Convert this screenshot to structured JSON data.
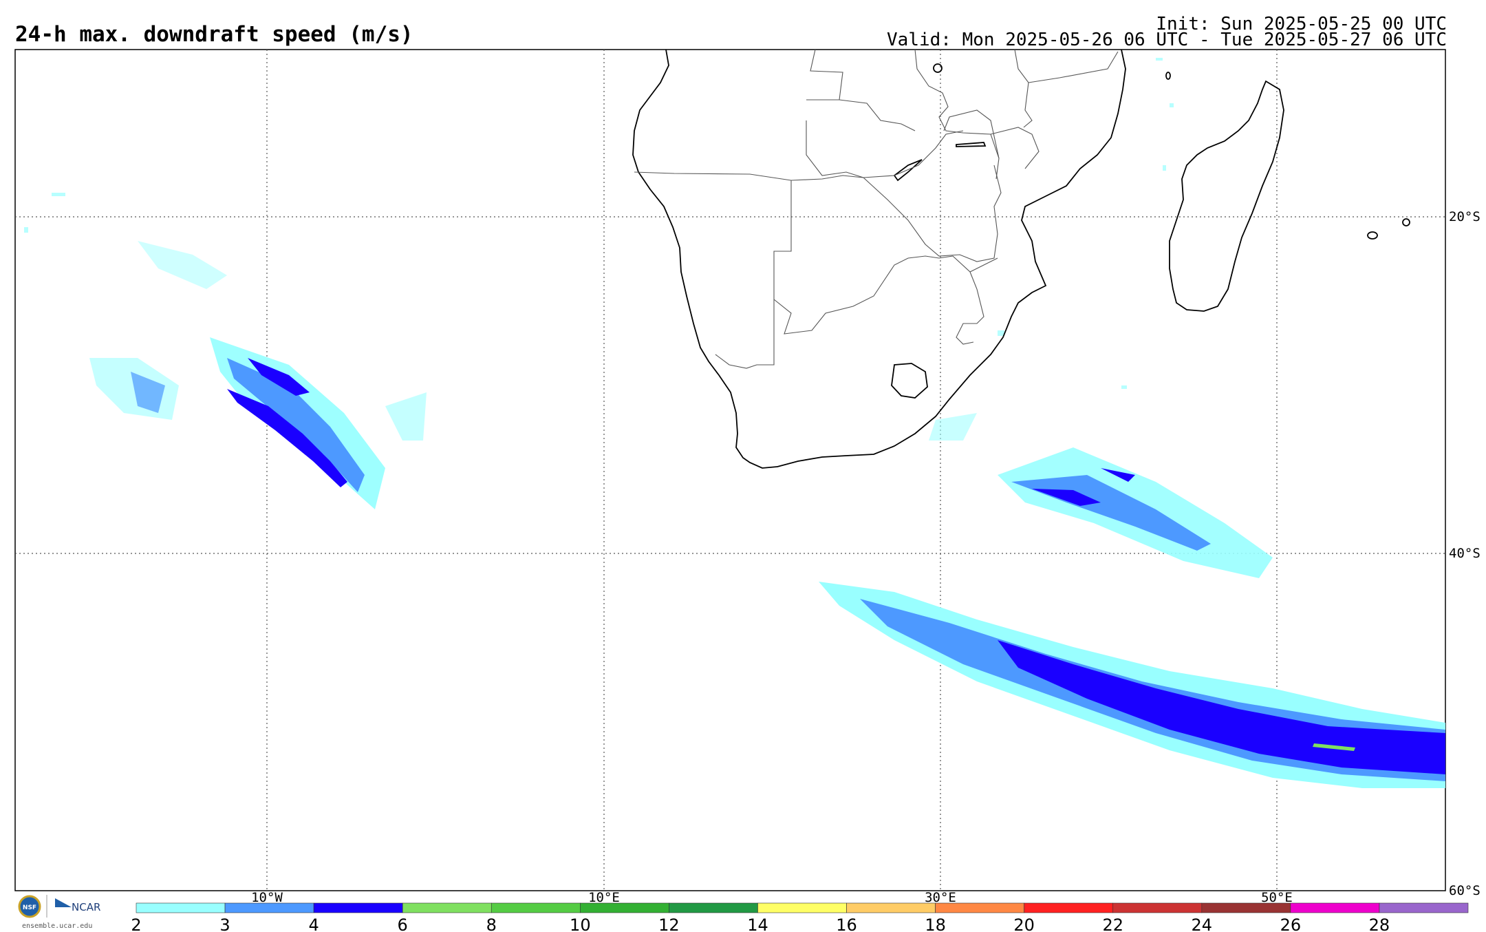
{
  "header": {
    "title": "24-h max. downdraft speed (m/s)",
    "init": "Init: Sun 2025-05-25 00 UTC",
    "valid": "Valid: Mon 2025-05-26 06 UTC - Tue 2025-05-27 06 UTC"
  },
  "map": {
    "lon_labels": [
      "10°W",
      "10°E",
      "30°E",
      "50°E"
    ],
    "lat_labels": [
      "20°S",
      "40°S",
      "60°S"
    ]
  },
  "colorbar": {
    "ticks": [
      "2",
      "3",
      "4",
      "6",
      "8",
      "10",
      "12",
      "14",
      "16",
      "18",
      "20",
      "22",
      "24",
      "26",
      "28"
    ],
    "colors": [
      "#99ffff",
      "#4d99ff",
      "#1a00ff",
      "#80e060",
      "#55cc44",
      "#33b033",
      "#229944",
      "#ffff66",
      "#ffcc66",
      "#ff8844",
      "#ff2222",
      "#cc3333",
      "#993333",
      "#ee00cc",
      "#9966cc"
    ]
  },
  "logo": {
    "nsf": "NSF",
    "ncar": "NCAR",
    "url": "ensemble.ucar.edu"
  }
}
